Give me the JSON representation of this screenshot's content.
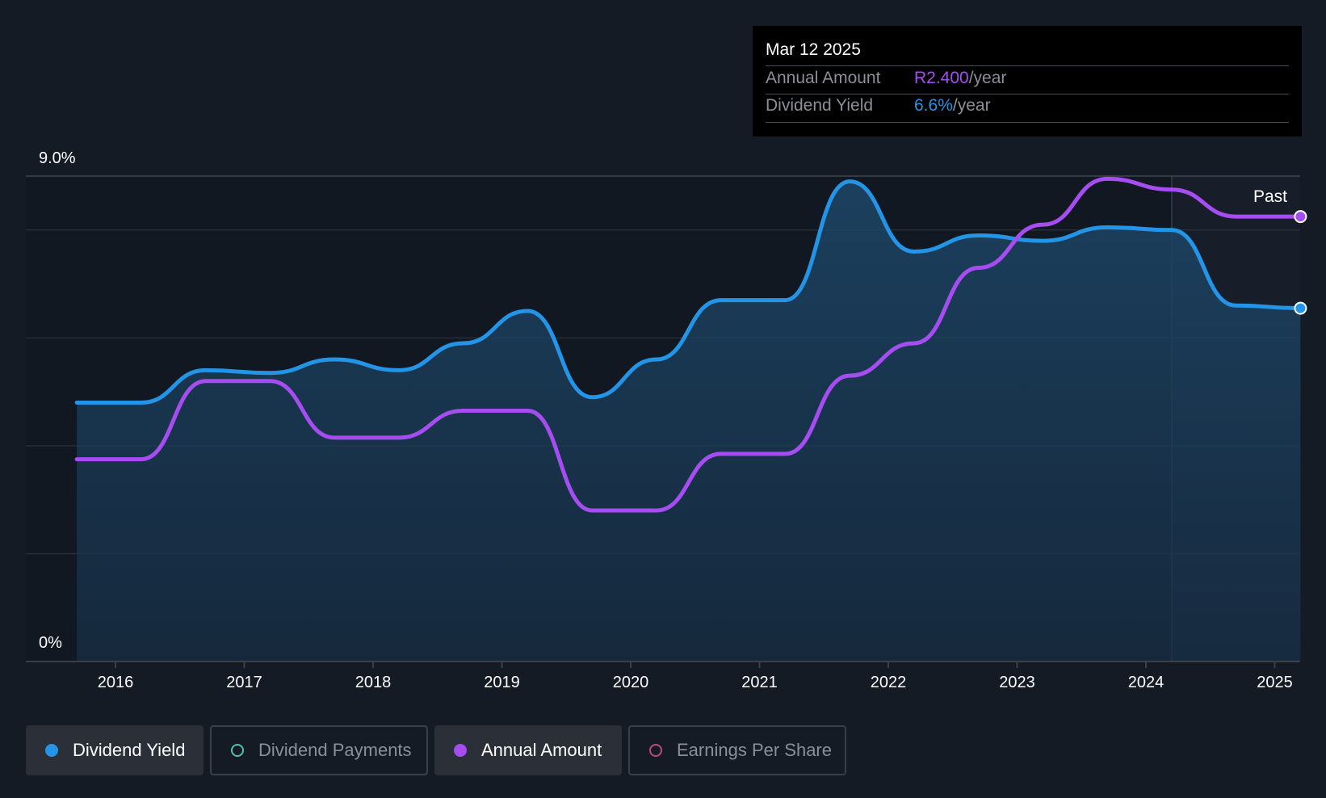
{
  "chart_data": {
    "type": "line",
    "y_axis": {
      "top_label": "9.0%",
      "bottom_label": "0%",
      "ylim": [
        0,
        9.0
      ]
    },
    "x_ticks": [
      "2016",
      "2017",
      "2018",
      "2019",
      "2020",
      "2021",
      "2022",
      "2023",
      "2024",
      "2025"
    ],
    "past_label": "Past",
    "grid": true,
    "series": [
      {
        "name": "Dividend Yield",
        "color": "#2394e6",
        "area": true,
        "points": [
          [
            2015.7,
            4.8
          ],
          [
            2016.2,
            4.8
          ],
          [
            2016.7,
            5.4
          ],
          [
            2017.2,
            5.35
          ],
          [
            2017.7,
            5.6
          ],
          [
            2018.2,
            5.4
          ],
          [
            2018.7,
            5.9
          ],
          [
            2019.2,
            6.5
          ],
          [
            2019.7,
            4.9
          ],
          [
            2020.2,
            5.6
          ],
          [
            2020.7,
            6.7
          ],
          [
            2021.2,
            6.7
          ],
          [
            2021.7,
            8.9
          ],
          [
            2022.2,
            7.6
          ],
          [
            2022.7,
            7.9
          ],
          [
            2023.2,
            7.8
          ],
          [
            2023.7,
            8.05
          ],
          [
            2024.2,
            8.0
          ],
          [
            2024.7,
            6.6
          ],
          [
            2025.2,
            6.55
          ]
        ]
      },
      {
        "name": "Annual Amount",
        "color": "#a64df2",
        "area": false,
        "points": [
          [
            2015.7,
            3.75
          ],
          [
            2016.2,
            3.75
          ],
          [
            2016.7,
            5.2
          ],
          [
            2017.2,
            5.2
          ],
          [
            2017.7,
            4.15
          ],
          [
            2018.2,
            4.15
          ],
          [
            2018.7,
            4.65
          ],
          [
            2019.2,
            4.65
          ],
          [
            2019.7,
            2.8
          ],
          [
            2020.2,
            2.8
          ],
          [
            2020.7,
            3.85
          ],
          [
            2021.2,
            3.85
          ],
          [
            2021.7,
            5.3
          ],
          [
            2022.2,
            5.9
          ],
          [
            2022.7,
            7.3
          ],
          [
            2023.2,
            8.1
          ],
          [
            2023.7,
            8.95
          ],
          [
            2024.2,
            8.75
          ],
          [
            2024.7,
            8.25
          ],
          [
            2025.2,
            8.25
          ]
        ]
      }
    ]
  },
  "tooltip": {
    "date": "Mar 12 2025",
    "annual_amount_label": "Annual Amount",
    "annual_amount_value": "R2.400",
    "dividend_yield_label": "Dividend Yield",
    "dividend_yield_value": "6.6%",
    "unit": "/year"
  },
  "legend": [
    {
      "label": "Dividend Yield",
      "color": "#2394e6",
      "active": true,
      "filled": true
    },
    {
      "label": "Dividend Payments",
      "color": "#4fc1b0",
      "active": false,
      "filled": false
    },
    {
      "label": "Annual Amount",
      "color": "#a64df2",
      "active": true,
      "filled": true
    },
    {
      "label": "Earnings Per Share",
      "color": "#c0467e",
      "active": false,
      "filled": false
    }
  ]
}
